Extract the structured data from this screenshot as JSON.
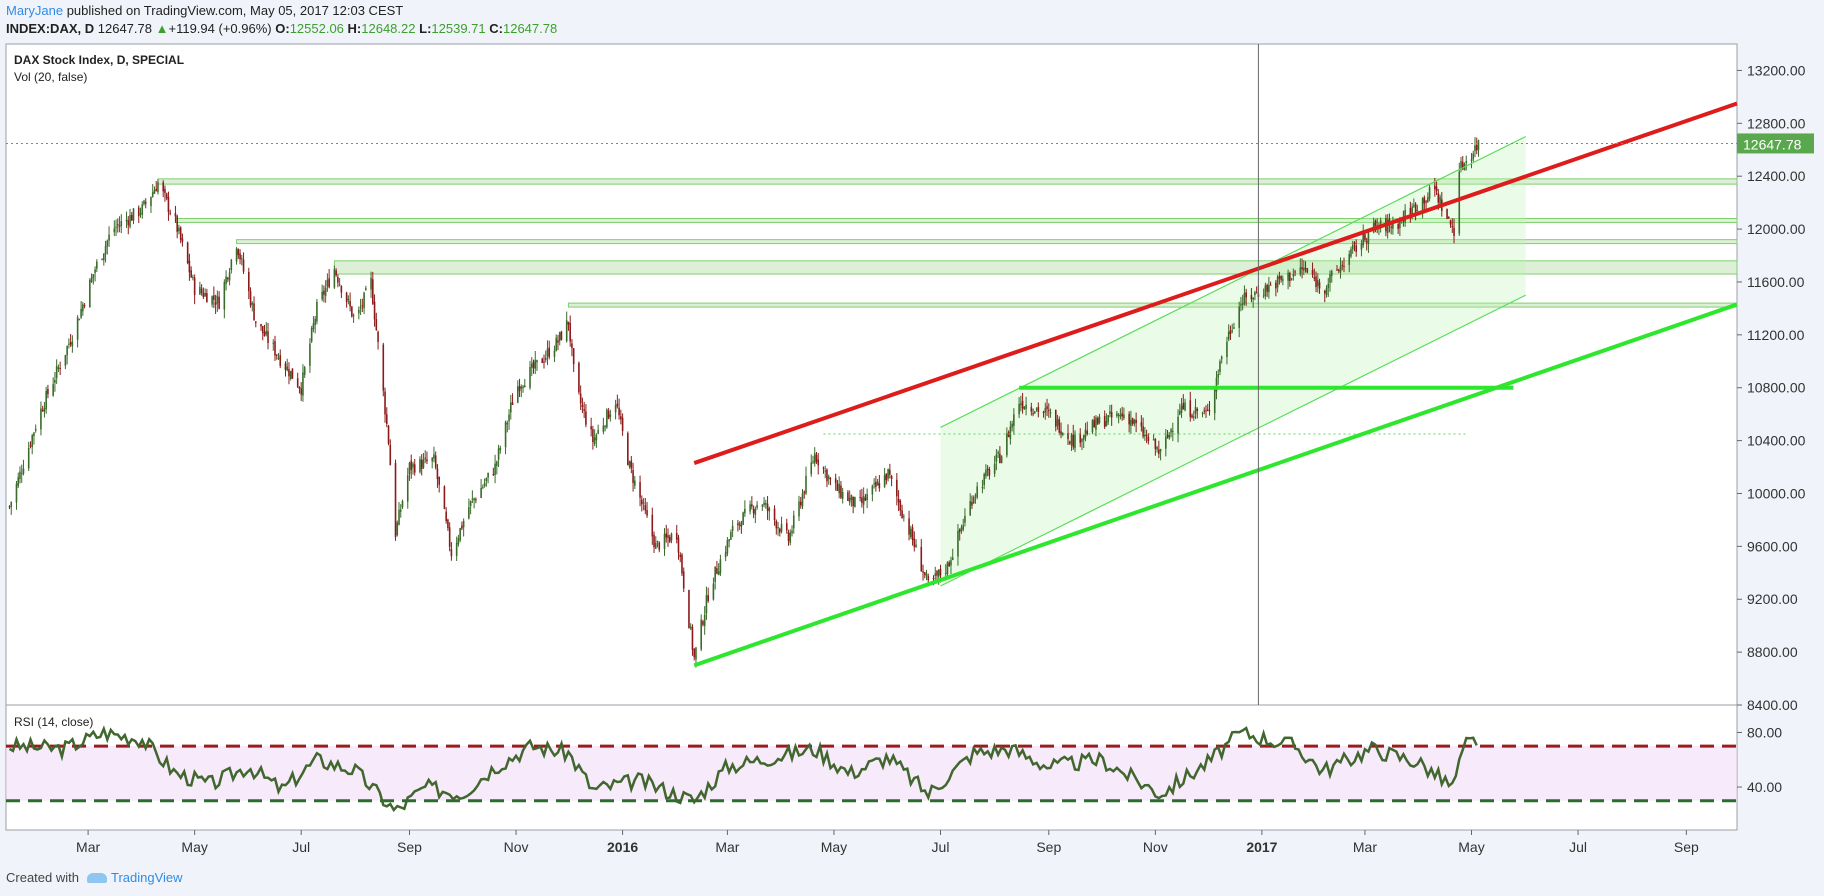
{
  "header": {
    "author": "MaryJane",
    "published": "published on TradingView.com, May 05, 2017 12:03 CEST",
    "symbol": "INDEX:DAX, D",
    "last": "12647.78",
    "change": "+119.94 (+0.96%)",
    "open_label": "O:",
    "open": "12552.06",
    "high_label": "H:",
    "high": "12648.22",
    "low_label": "L:",
    "low": "12539.71",
    "close_label": "C:",
    "close": "12647.78"
  },
  "panes": {
    "main_title": "DAX Stock Index, D, SPECIAL",
    "volume_label": "Vol (20, false)",
    "rsi_label": "RSI (14, close)"
  },
  "footer": {
    "created_with": "Created with",
    "brand": "TradingView"
  },
  "colors": {
    "up": "#3a6b2b",
    "down": "#8b1a1a",
    "support": "#2ee62e",
    "resistance": "#dd1c1c",
    "zone": "#cfe8c6",
    "rsi_line": "#41672f",
    "rsi_band": "#f2dcf7"
  },
  "chart_data": {
    "type": "candlestick",
    "price_axis": {
      "min": 8400,
      "max": 13400,
      "ticks": [
        "13200.00",
        "12800.00",
        "12400.00",
        "12000.00",
        "11600.00",
        "11200.00",
        "10800.00",
        "10400.00",
        "10000.00",
        "9600.00",
        "9200.00",
        "8800.00",
        "8400.00"
      ]
    },
    "last_price_label": "12647.78",
    "x_ticks": [
      "Mar",
      "May",
      "Jul",
      "Sep",
      "Nov",
      "2016",
      "Mar",
      "May",
      "Jul",
      "Sep",
      "Nov",
      "2017",
      "Mar",
      "May",
      "Jul",
      "Sep"
    ],
    "x_tick_bold": [
      false,
      false,
      false,
      false,
      false,
      true,
      false,
      false,
      false,
      false,
      false,
      true,
      false,
      false,
      false,
      false
    ],
    "price_path": [
      [
        "2015-01-15",
        9900
      ],
      [
        "2015-02-01",
        10600
      ],
      [
        "2015-02-20",
        11200
      ],
      [
        "2015-03-05",
        11700
      ],
      [
        "2015-03-15",
        12000
      ],
      [
        "2015-04-01",
        12150
      ],
      [
        "2015-04-10",
        12350
      ],
      [
        "2015-04-20",
        12050
      ],
      [
        "2015-05-01",
        11550
      ],
      [
        "2015-05-15",
        11450
      ],
      [
        "2015-05-25",
        11900
      ],
      [
        "2015-06-05",
        11300
      ],
      [
        "2015-06-20",
        11000
      ],
      [
        "2015-07-01",
        10800
      ],
      [
        "2015-07-10",
        11400
      ],
      [
        "2015-07-20",
        11700
      ],
      [
        "2015-08-01",
        11300
      ],
      [
        "2015-08-10",
        11600
      ],
      [
        "2015-08-20",
        10400
      ],
      [
        "2015-08-24",
        9700
      ],
      [
        "2015-09-01",
        10200
      ],
      [
        "2015-09-15",
        10250
      ],
      [
        "2015-09-25",
        9550
      ],
      [
        "2015-10-05",
        9900
      ],
      [
        "2015-10-20",
        10200
      ],
      [
        "2015-11-01",
        10800
      ],
      [
        "2015-11-15",
        11000
      ],
      [
        "2015-11-25",
        11150
      ],
      [
        "2015-12-01",
        11300
      ],
      [
        "2015-12-05",
        10800
      ],
      [
        "2015-12-15",
        10400
      ],
      [
        "2015-12-28",
        10700
      ],
      [
        "2016-01-05",
        10200
      ],
      [
        "2016-01-20",
        9600
      ],
      [
        "2016-02-01",
        9700
      ],
      [
        "2016-02-11",
        8750
      ],
      [
        "2016-02-20",
        9300
      ],
      [
        "2016-03-05",
        9750
      ],
      [
        "2016-03-20",
        9950
      ],
      [
        "2016-04-05",
        9650
      ],
      [
        "2016-04-20",
        10300
      ],
      [
        "2016-05-01",
        10050
      ],
      [
        "2016-05-15",
        9900
      ],
      [
        "2016-06-01",
        10150
      ],
      [
        "2016-06-15",
        9650
      ],
      [
        "2016-06-24",
        9300
      ],
      [
        "2016-07-05",
        9450
      ],
      [
        "2016-07-20",
        10000
      ],
      [
        "2016-08-05",
        10300
      ],
      [
        "2016-08-15",
        10700
      ],
      [
        "2016-09-01",
        10600
      ],
      [
        "2016-09-15",
        10400
      ],
      [
        "2016-10-01",
        10550
      ],
      [
        "2016-10-15",
        10600
      ],
      [
        "2016-11-04",
        10300
      ],
      [
        "2016-11-15",
        10650
      ],
      [
        "2016-12-01",
        10600
      ],
      [
        "2016-12-10",
        11100
      ],
      [
        "2016-12-20",
        11450
      ],
      [
        "2017-01-10",
        11600
      ],
      [
        "2017-01-25",
        11700
      ],
      [
        "2017-02-05",
        11550
      ],
      [
        "2017-02-20",
        11800
      ],
      [
        "2017-03-05",
        12000
      ],
      [
        "2017-03-20",
        12050
      ],
      [
        "2017-04-01",
        12200
      ],
      [
        "2017-04-10",
        12300
      ],
      [
        "2017-04-18",
        12050
      ],
      [
        "2017-04-21",
        12000
      ],
      [
        "2017-04-24",
        12450
      ],
      [
        "2017-05-05",
        12647.78
      ]
    ],
    "horizontal_zones": [
      {
        "from": "2015-04-10",
        "top": 12380,
        "bottom": 12340
      },
      {
        "from": "2015-04-20",
        "top": 12080,
        "bottom": 12050
      },
      {
        "from": "2015-05-25",
        "top": 11920,
        "bottom": 11890
      },
      {
        "from": "2015-07-20",
        "top": 11760,
        "bottom": 11660
      },
      {
        "from": "2015-12-01",
        "top": 11440,
        "bottom": 11410
      }
    ],
    "support_line": {
      "start": [
        "2016-02-11",
        8700
      ],
      "end": [
        "2017-09-30",
        11430
      ]
    },
    "resistance_line": {
      "start": [
        "2016-02-11",
        10230
      ],
      "end": [
        "2017-09-30",
        12950
      ]
    },
    "channel": {
      "upper": [
        [
          "2016-07-01",
          10500
        ],
        [
          "2017-06-01",
          12700
        ]
      ],
      "lower": [
        [
          "2016-07-01",
          9300
        ],
        [
          "2017-06-01",
          11500
        ]
      ]
    },
    "neckline": {
      "from": "2016-08-15",
      "to": "2017-05-25",
      "value": 10800
    },
    "dotted_level": {
      "from": "2016-04-25",
      "to": "2017-04-28",
      "value": 10450
    },
    "vertical_marker": "2016-12-30",
    "rsi": {
      "min": 10,
      "max": 95,
      "ticks": [
        "80.00",
        "40.00"
      ],
      "overbought": 70,
      "oversold": 30,
      "path": [
        [
          "2015-01-15",
          70
        ],
        [
          "2015-02-15",
          68
        ],
        [
          "2015-03-10",
          80
        ],
        [
          "2015-04-01",
          75
        ],
        [
          "2015-04-20",
          50
        ],
        [
          "2015-05-10",
          42
        ],
        [
          "2015-06-01",
          55
        ],
        [
          "2015-06-20",
          38
        ],
        [
          "2015-07-10",
          60
        ],
        [
          "2015-08-01",
          52
        ],
        [
          "2015-08-24",
          22
        ],
        [
          "2015-09-10",
          40
        ],
        [
          "2015-10-01",
          35
        ],
        [
          "2015-10-20",
          55
        ],
        [
          "2015-11-10",
          70
        ],
        [
          "2015-12-01",
          65
        ],
        [
          "2015-12-15",
          38
        ],
        [
          "2016-01-10",
          45
        ],
        [
          "2016-02-11",
          30
        ],
        [
          "2016-03-01",
          55
        ],
        [
          "2016-03-20",
          60
        ],
        [
          "2016-04-20",
          68
        ],
        [
          "2016-05-10",
          50
        ],
        [
          "2016-06-01",
          62
        ],
        [
          "2016-06-24",
          35
        ],
        [
          "2016-07-20",
          65
        ],
        [
          "2016-08-10",
          68
        ],
        [
          "2016-09-01",
          55
        ],
        [
          "2016-10-01",
          60
        ],
        [
          "2016-11-04",
          35
        ],
        [
          "2016-12-01",
          58
        ],
        [
          "2016-12-20",
          80
        ],
        [
          "2017-01-20",
          70
        ],
        [
          "2017-02-05",
          52
        ],
        [
          "2017-03-05",
          68
        ],
        [
          "2017-04-01",
          58
        ],
        [
          "2017-04-20",
          40
        ],
        [
          "2017-04-28",
          72
        ],
        [
          "2017-05-05",
          75
        ]
      ]
    }
  }
}
